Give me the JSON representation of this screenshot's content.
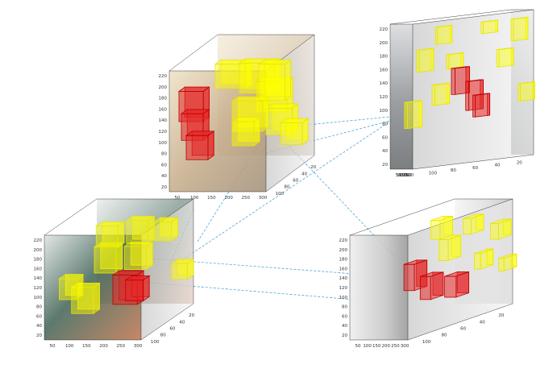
{
  "panels": [
    {
      "id": "p1",
      "x_ticks": [
        "50",
        "100",
        "150",
        "200",
        "250",
        "300"
      ],
      "y_ticks": [
        "220",
        "200",
        "180",
        "160",
        "140",
        "120",
        "100",
        "80",
        "60",
        "40",
        "20"
      ],
      "z_ticks": [
        "20",
        "40",
        "60",
        "80",
        "100"
      ]
    },
    {
      "id": "p2",
      "x_ticks": [
        "50",
        "100",
        "150",
        "200",
        "250",
        "300"
      ],
      "y_ticks": [
        "220",
        "200",
        "180",
        "160",
        "140",
        "120",
        "100",
        "80",
        "60",
        "40",
        "20"
      ],
      "z_ticks": [
        "20",
        "40",
        "60",
        "80",
        "100"
      ]
    },
    {
      "id": "p3",
      "x_ticks": [
        "50",
        "100",
        "150",
        "200",
        "250",
        "300"
      ],
      "y_ticks": [
        "220",
        "200",
        "180",
        "160",
        "140",
        "120",
        "100",
        "80",
        "60",
        "40",
        "20"
      ],
      "z_ticks": [
        "20",
        "40",
        "60",
        "80",
        "100"
      ]
    },
    {
      "id": "p4",
      "x_ticks": [
        "50",
        "100",
        "150",
        "200",
        "250",
        "300"
      ],
      "y_ticks": [
        "220",
        "200",
        "180",
        "160",
        "140",
        "120",
        "100",
        "80",
        "60",
        "40",
        "20"
      ],
      "z_ticks": [
        "20",
        "40",
        "60",
        "80",
        "100"
      ]
    }
  ],
  "colors": {
    "highlight": "#ffff00",
    "salient": "#e02020",
    "connector": "#3a9bd0"
  }
}
